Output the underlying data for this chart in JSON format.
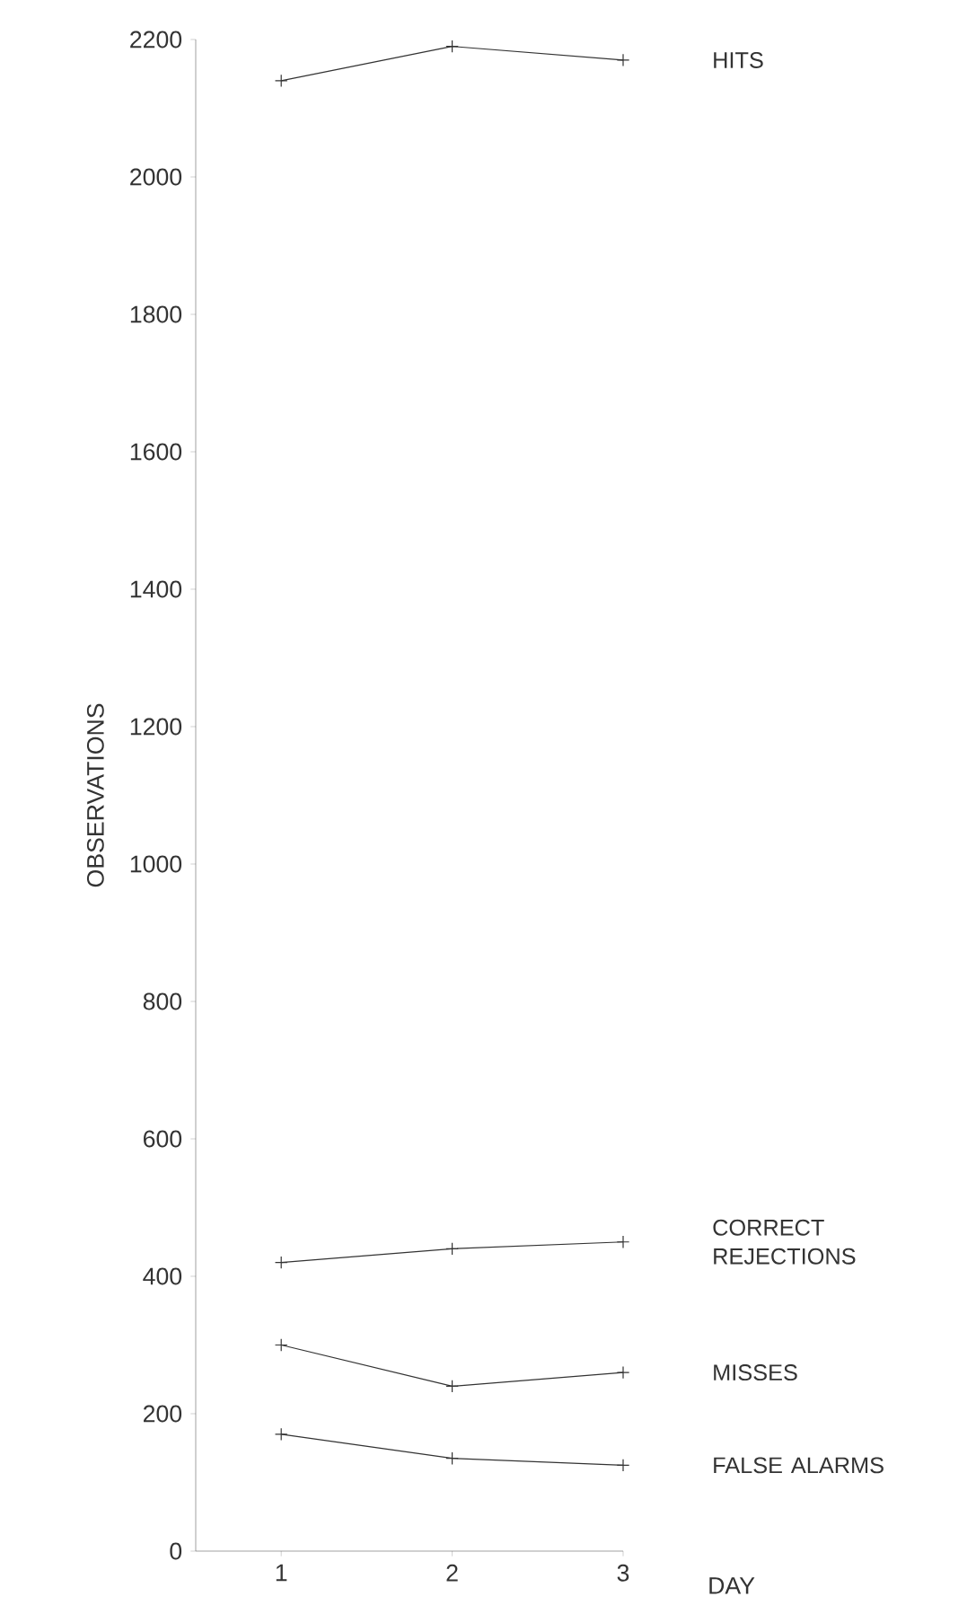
{
  "chart_data": {
    "type": "line",
    "xlabel": "DAY",
    "ylabel": "OBSERVATIONS",
    "x": [
      1,
      2,
      3
    ],
    "xlim": [
      0.5,
      3
    ],
    "xticks": [
      1,
      2,
      3
    ],
    "ylim": [
      0,
      2200
    ],
    "yticks": [
      0,
      200,
      400,
      600,
      800,
      1000,
      1200,
      1400,
      1600,
      1800,
      2000,
      2200
    ],
    "marker": "cross",
    "line_style": "solid",
    "grid": false,
    "legend": false,
    "series": [
      {
        "name": "HITS",
        "color": "#333333",
        "values": [
          2140,
          2190,
          2170
        ]
      },
      {
        "name": "CORRECT REJECTIONS",
        "color": "#333333",
        "values": [
          420,
          440,
          450
        ]
      },
      {
        "name": "MISSES",
        "color": "#333333",
        "values": [
          300,
          240,
          260
        ]
      },
      {
        "name": "FALSE ALARMS",
        "color": "#333333",
        "values": [
          170,
          135,
          125
        ]
      }
    ]
  }
}
